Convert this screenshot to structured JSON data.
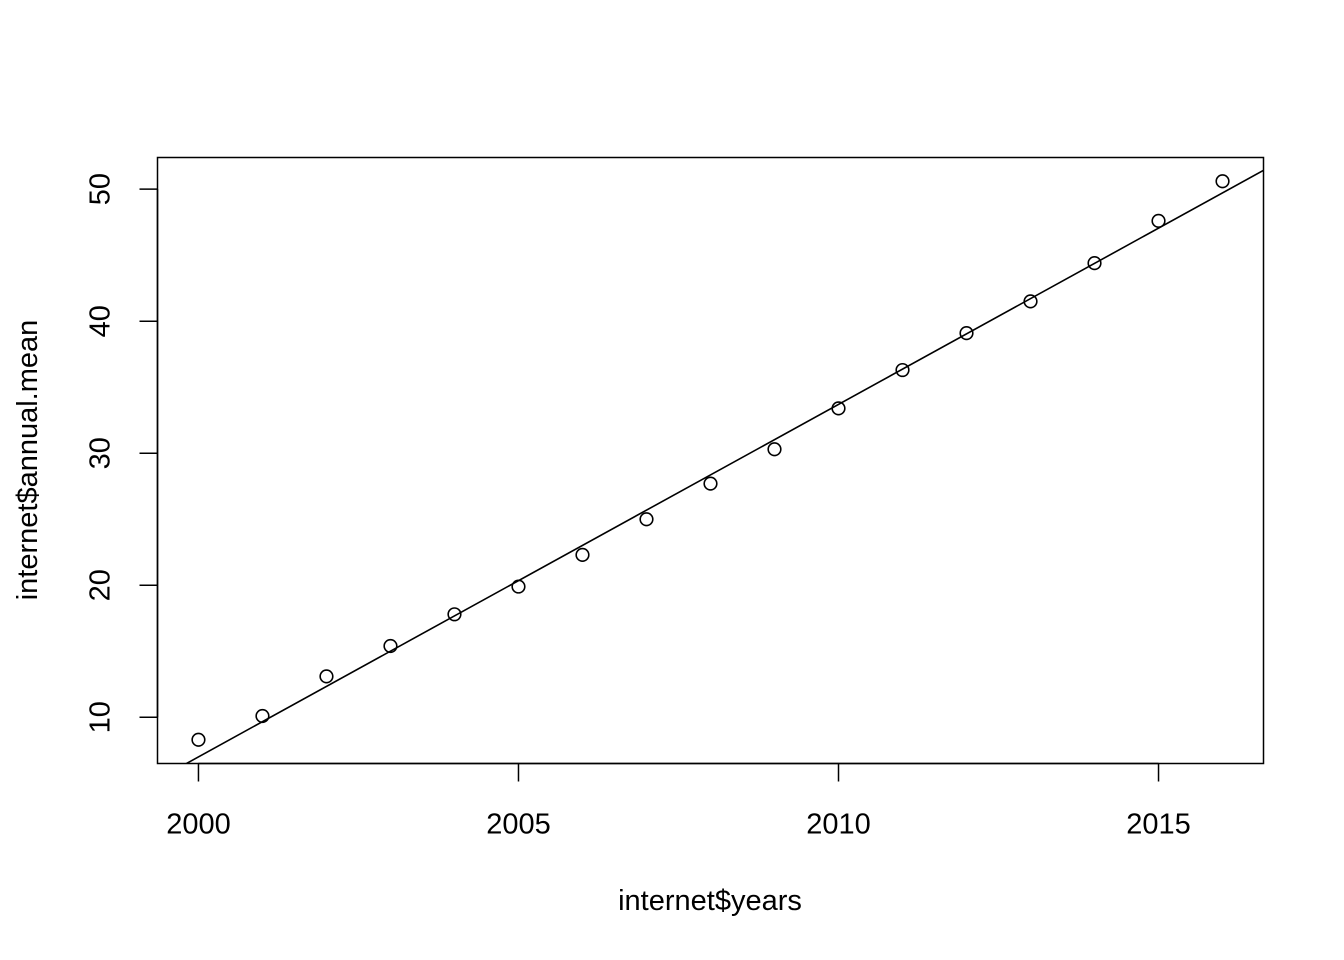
{
  "chart_data": {
    "type": "scatter",
    "title": "",
    "xlabel": "internet$years",
    "ylabel": "internet$annual.mean",
    "xlim": [
      1999.36,
      2016.64
    ],
    "ylim": [
      6.5,
      52.4
    ],
    "x_ticks": [
      2000,
      2005,
      2010,
      2015
    ],
    "y_ticks": [
      10,
      20,
      30,
      40,
      50
    ],
    "x_tick_labels": [
      "2000",
      "2005",
      "2010",
      "2015"
    ],
    "y_tick_labels": [
      "10",
      "20",
      "30",
      "40",
      "50"
    ],
    "grid": false,
    "legend": "none",
    "series": [
      {
        "marker": "open-circle",
        "x": [
          2000,
          2001,
          2002,
          2003,
          2004,
          2005,
          2006,
          2007,
          2008,
          2009,
          2010,
          2011,
          2012,
          2013,
          2014,
          2015,
          2016
        ],
        "y": [
          8.3,
          10.1,
          13.1,
          15.4,
          17.8,
          19.9,
          22.3,
          25.0,
          27.7,
          30.3,
          33.4,
          36.3,
          39.1,
          41.5,
          44.4,
          47.6,
          50.6
        ]
      }
    ],
    "fit_line": {
      "type": "linear",
      "intercept_at_2000": 7.0,
      "slope": 2.67
    },
    "colors": {
      "ink": "#000000",
      "background": "#ffffff"
    }
  }
}
